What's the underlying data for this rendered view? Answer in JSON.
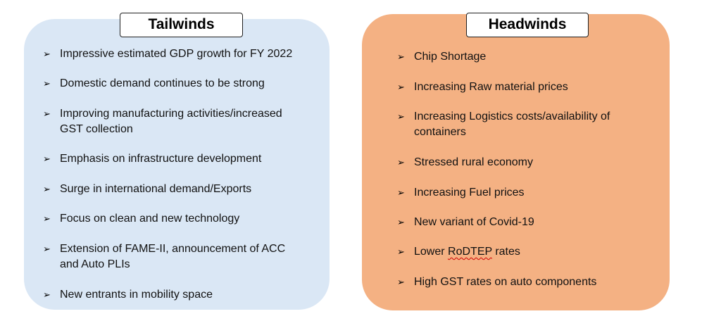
{
  "tailwinds": {
    "title": "Tailwinds",
    "items": [
      [
        "Impressive estimated  GDP growth for FY 2022"
      ],
      [
        "Domestic demand continues to be strong"
      ],
      [
        "Improving manufacturing activities/increased",
        "GST collection"
      ],
      [
        "Emphasis on infrastructure development"
      ],
      [
        "Surge in international  demand/Exports"
      ],
      [
        "Focus on clean and new technology"
      ],
      [
        "Extension of FAME-II, announcement  of ACC",
        "and Auto PLIs"
      ],
      [
        "New entrants in mobility space"
      ]
    ]
  },
  "headwinds": {
    "title": "Headwinds",
    "items": [
      [
        "Chip Shortage"
      ],
      [
        "Increasing Raw material prices"
      ],
      [
        "Increasing Logistics costs/availability  of",
        "containers"
      ],
      [
        "Stressed rural economy"
      ],
      [
        "Increasing Fuel prices"
      ],
      [
        "New variant of Covid-19"
      ],
      [
        "Lower RoDTEP rates"
      ],
      [
        "High GST rates on auto components"
      ]
    ]
  },
  "bullet_glyph": "➢",
  "colors": {
    "tailwinds_bg": "#dae7f5",
    "headwinds_bg": "#f4b183"
  }
}
